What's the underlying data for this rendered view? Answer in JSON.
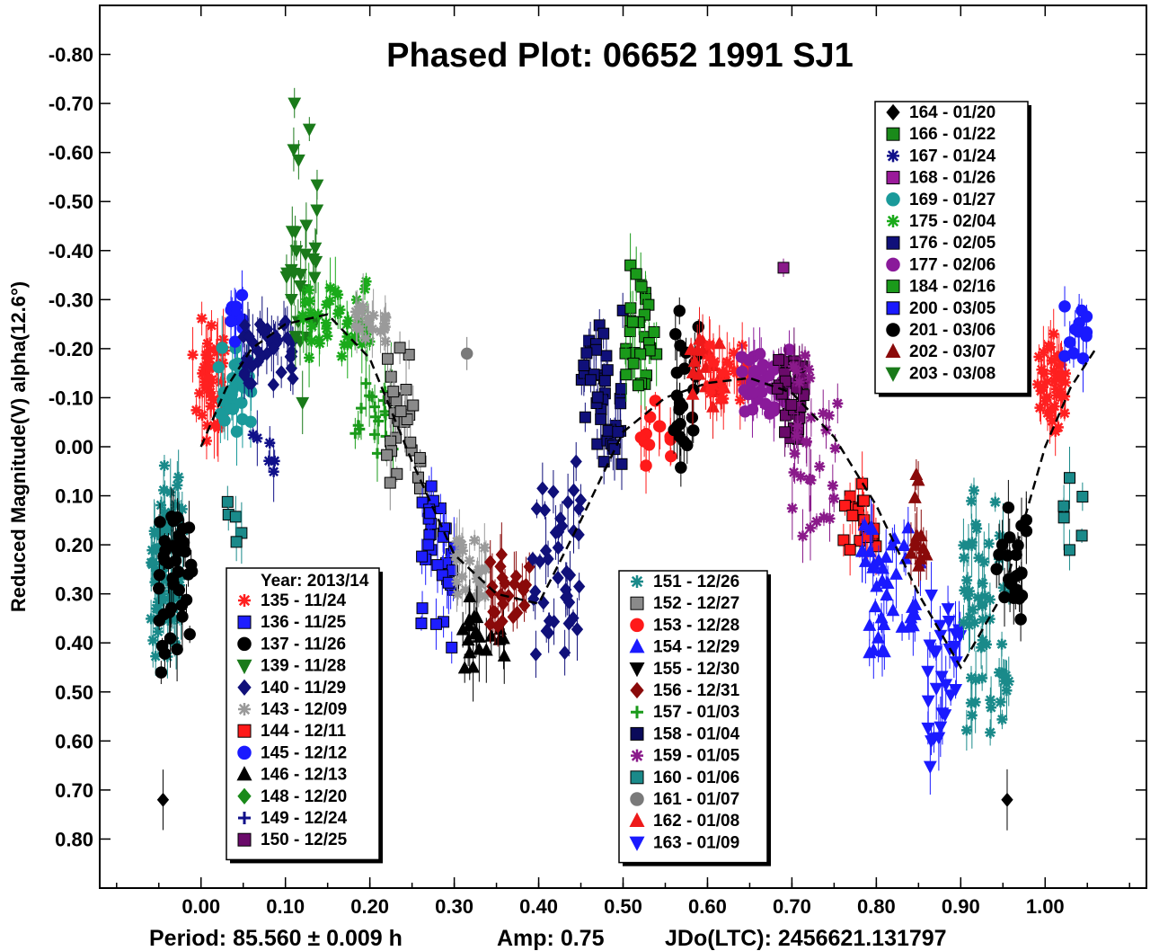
{
  "chart_data": {
    "type": "scatter",
    "title": "Phased Plot: 06652 1991 SJ1",
    "xlabel": "",
    "ylabel": "Reduced Magnitude(V) alpha(12.6°)",
    "xlim": [
      -0.12,
      1.12
    ],
    "ylim": [
      0.9,
      -0.9
    ],
    "y_inverted": true,
    "x_ticks": [
      "0.00",
      "0.10",
      "0.20",
      "0.30",
      "0.40",
      "0.50",
      "0.60",
      "0.70",
      "0.80",
      "0.90",
      "1.00"
    ],
    "x_tick_values": [
      0.0,
      0.1,
      0.2,
      0.3,
      0.4,
      0.5,
      0.6,
      0.7,
      0.8,
      0.9,
      1.0
    ],
    "y_ticks": [
      "-0.80",
      "-0.70",
      "-0.60",
      "-0.50",
      "-0.40",
      "-0.30",
      "-0.20",
      "-0.10",
      "0.00",
      "0.10",
      "0.20",
      "0.30",
      "0.40",
      "0.50",
      "0.60",
      "0.70",
      "0.80"
    ],
    "y_tick_values": [
      -0.8,
      -0.7,
      -0.6,
      -0.5,
      -0.4,
      -0.3,
      -0.2,
      -0.1,
      0.0,
      0.1,
      0.2,
      0.3,
      0.4,
      0.5,
      0.6,
      0.7,
      0.8
    ],
    "footer": {
      "period": "Period: 85.560 ± 0.009 h",
      "amp": "Amp: 0.75",
      "jdo": "JDo(LTC): 2456621.131797"
    },
    "legend_left_header": "Year: 2013/14",
    "fit_curve": {
      "x": [
        0.0,
        0.03,
        0.06,
        0.1,
        0.15,
        0.2,
        0.25,
        0.3,
        0.35,
        0.4,
        0.45,
        0.5,
        0.55,
        0.6,
        0.65,
        0.7,
        0.75,
        0.8,
        0.85,
        0.9,
        0.95,
        1.0,
        1.03,
        1.06
      ],
      "y": [
        0.0,
        -0.12,
        -0.2,
        -0.25,
        -0.27,
        -0.18,
        0.03,
        0.22,
        0.3,
        0.32,
        0.15,
        -0.03,
        -0.1,
        -0.13,
        -0.14,
        -0.11,
        -0.02,
        0.12,
        0.3,
        0.45,
        0.3,
        0.0,
        -0.12,
        -0.2
      ]
    },
    "legend_left": [
      {
        "label": "135 - 11/24",
        "marker": "asterisk",
        "color": "#ff2020"
      },
      {
        "label": "136 - 11/25",
        "marker": "square",
        "color": "#1e1eff"
      },
      {
        "label": "137 - 11/26",
        "marker": "circle",
        "color": "#000000"
      },
      {
        "label": "139 - 11/28",
        "marker": "triangle-down",
        "color": "#1a7a1a"
      },
      {
        "label": "140 - 11/29",
        "marker": "diamond",
        "color": "#10107a"
      },
      {
        "label": "143 - 12/09",
        "marker": "asterisk",
        "color": "#9a9a9a"
      },
      {
        "label": "144 - 12/11",
        "marker": "square",
        "color": "#ff1a1a"
      },
      {
        "label": "145 - 12/12",
        "marker": "circle",
        "color": "#1a1aff"
      },
      {
        "label": "146 - 12/13",
        "marker": "triangle-up",
        "color": "#000000"
      },
      {
        "label": "148 - 12/20",
        "marker": "diamond",
        "color": "#1a8a1a"
      },
      {
        "label": "149 - 12/24",
        "marker": "plus",
        "color": "#10108a"
      },
      {
        "label": "150 - 12/25",
        "marker": "square",
        "color": "#6a0a6a"
      }
    ],
    "legend_mid": [
      {
        "label": "151 - 12/26",
        "marker": "asterisk",
        "color": "#1a8a8a"
      },
      {
        "label": "152 - 12/27",
        "marker": "square",
        "color": "#8a8a8a"
      },
      {
        "label": "153 - 12/28",
        "marker": "circle",
        "color": "#ff1a1a"
      },
      {
        "label": "154 - 12/29",
        "marker": "triangle-up",
        "color": "#1a1aff"
      },
      {
        "label": "155 - 12/30",
        "marker": "triangle-down",
        "color": "#000000"
      },
      {
        "label": "156 - 12/31",
        "marker": "diamond",
        "color": "#8a0a0a"
      },
      {
        "label": "157 - 01/03",
        "marker": "plus",
        "color": "#1a9a1a"
      },
      {
        "label": "158 - 01/04",
        "marker": "square",
        "color": "#0a0a5a"
      },
      {
        "label": "159 - 01/05",
        "marker": "asterisk",
        "color": "#8a1a8a"
      },
      {
        "label": "160 - 01/06",
        "marker": "square",
        "color": "#1a8a8a"
      },
      {
        "label": "161 - 01/07",
        "marker": "circle",
        "color": "#7a7a7a"
      },
      {
        "label": "162 - 01/08",
        "marker": "triangle-up",
        "color": "#ee1a1a"
      },
      {
        "label": "163 - 01/09",
        "marker": "triangle-down",
        "color": "#1a1aff"
      }
    ],
    "legend_right": [
      {
        "label": "164 - 01/20",
        "marker": "diamond",
        "color": "#000000"
      },
      {
        "label": "166 - 01/22",
        "marker": "square",
        "color": "#1a8a1a"
      },
      {
        "label": "167 - 01/24",
        "marker": "asterisk",
        "color": "#10108a"
      },
      {
        "label": "168 - 01/26",
        "marker": "square",
        "color": "#9a1a9a"
      },
      {
        "label": "169 - 01/27",
        "marker": "circle",
        "color": "#1a9a9a"
      },
      {
        "label": "175 - 02/04",
        "marker": "asterisk",
        "color": "#1aaa1a"
      },
      {
        "label": "176 - 02/05",
        "marker": "square",
        "color": "#10107a"
      },
      {
        "label": "177 - 02/06",
        "marker": "circle",
        "color": "#8a1a9a"
      },
      {
        "label": "184 - 02/16",
        "marker": "square",
        "color": "#1a9a1a"
      },
      {
        "label": "200 - 03/05",
        "marker": "square",
        "color": "#1a1aff"
      },
      {
        "label": "201 - 03/06",
        "marker": "circle",
        "color": "#000000"
      },
      {
        "label": "202 - 03/07",
        "marker": "triangle-up",
        "color": "#8a0a0a"
      },
      {
        "label": "203 - 03/08",
        "marker": "triangle-down",
        "color": "#1a7a1a"
      }
    ],
    "clusters": [
      {
        "marker": "asterisk",
        "color": "#1a8a8a",
        "x": [
          -0.06,
          -0.02
        ],
        "y": [
          -0.0,
          0.5
        ],
        "n": 70
      },
      {
        "marker": "circle",
        "color": "#000000",
        "x": [
          -0.05,
          -0.01
        ],
        "y": [
          0.05,
          0.5
        ],
        "n": 40
      },
      {
        "marker": "diamond",
        "color": "#000000",
        "x": [
          -0.05,
          -0.04
        ],
        "y": [
          0.72,
          0.72
        ],
        "n": 1
      },
      {
        "marker": "asterisk",
        "color": "#ff2020",
        "x": [
          -0.01,
          0.03
        ],
        "y": [
          -0.28,
          0.0
        ],
        "n": 45
      },
      {
        "marker": "circle",
        "color": "#1a9a9a",
        "x": [
          0.02,
          0.06
        ],
        "y": [
          -0.25,
          0.0
        ],
        "n": 30
      },
      {
        "marker": "square",
        "color": "#1a8a8a",
        "x": [
          0.03,
          0.05
        ],
        "y": [
          0.1,
          0.22
        ],
        "n": 5
      },
      {
        "marker": "circle",
        "color": "#1a1aff",
        "x": [
          0.03,
          0.06
        ],
        "y": [
          -0.33,
          -0.2
        ],
        "n": 10
      },
      {
        "marker": "diamond",
        "color": "#10107a",
        "x": [
          0.05,
          0.11
        ],
        "y": [
          -0.3,
          -0.1
        ],
        "n": 40
      },
      {
        "marker": "asterisk",
        "color": "#10108a",
        "x": [
          0.06,
          0.1
        ],
        "y": [
          -0.05,
          0.07
        ],
        "n": 6
      },
      {
        "marker": "triangle-down",
        "color": "#1a7a1a",
        "x": [
          0.1,
          0.14
        ],
        "y": [
          -0.76,
          0.0
        ],
        "n": 30
      },
      {
        "marker": "asterisk",
        "color": "#1aaa1a",
        "x": [
          0.12,
          0.2
        ],
        "y": [
          -0.38,
          -0.15
        ],
        "n": 40
      },
      {
        "marker": "asterisk",
        "color": "#9a9a9a",
        "x": [
          0.18,
          0.22
        ],
        "y": [
          -0.3,
          -0.2
        ],
        "n": 20
      },
      {
        "marker": "plus",
        "color": "#1a9a1a",
        "x": [
          0.18,
          0.23
        ],
        "y": [
          -0.2,
          0.05
        ],
        "n": 20
      },
      {
        "marker": "square",
        "color": "#8a8a8a",
        "x": [
          0.22,
          0.26
        ],
        "y": [
          -0.25,
          0.15
        ],
        "n": 30
      },
      {
        "marker": "square",
        "color": "#1e1eff",
        "x": [
          0.26,
          0.3
        ],
        "y": [
          0.0,
          0.45
        ],
        "n": 35
      },
      {
        "marker": "asterisk",
        "color": "#9a9a9a",
        "x": [
          0.3,
          0.34
        ],
        "y": [
          0.15,
          0.35
        ],
        "n": 25
      },
      {
        "marker": "triangle-up",
        "color": "#000000",
        "x": [
          0.31,
          0.36
        ],
        "y": [
          0.3,
          0.48
        ],
        "n": 20
      },
      {
        "marker": "diamond",
        "color": "#8a0a0a",
        "x": [
          0.34,
          0.39
        ],
        "y": [
          0.2,
          0.4
        ],
        "n": 25
      },
      {
        "marker": "diamond",
        "color": "#10107a",
        "x": [
          0.39,
          0.45
        ],
        "y": [
          0.0,
          0.5
        ],
        "n": 40
      },
      {
        "marker": "square",
        "color": "#10107a",
        "x": [
          0.45,
          0.5
        ],
        "y": [
          -0.32,
          0.1
        ],
        "n": 40
      },
      {
        "marker": "square",
        "color": "#1a9a1a",
        "x": [
          0.5,
          0.54
        ],
        "y": [
          -0.42,
          -0.05
        ],
        "n": 30
      },
      {
        "marker": "circle",
        "color": "#ff1a1a",
        "x": [
          0.52,
          0.56
        ],
        "y": [
          -0.1,
          0.05
        ],
        "n": 12
      },
      {
        "marker": "circle",
        "color": "#000000",
        "x": [
          0.56,
          0.59
        ],
        "y": [
          -0.3,
          0.1
        ],
        "n": 25
      },
      {
        "marker": "triangle-up",
        "color": "#ee1a1a",
        "x": [
          0.58,
          0.62
        ],
        "y": [
          -0.28,
          -0.05
        ],
        "n": 25
      },
      {
        "marker": "asterisk",
        "color": "#ff2020",
        "x": [
          0.6,
          0.65
        ],
        "y": [
          -0.25,
          -0.05
        ],
        "n": 30
      },
      {
        "marker": "circle",
        "color": "#8a1a9a",
        "x": [
          0.64,
          0.7
        ],
        "y": [
          -0.22,
          -0.05
        ],
        "n": 35
      },
      {
        "marker": "square",
        "color": "#6a0a6a",
        "x": [
          0.68,
          0.72
        ],
        "y": [
          -0.26,
          0.05
        ],
        "n": 30
      },
      {
        "marker": "asterisk",
        "color": "#8a1a8a",
        "x": [
          0.7,
          0.76
        ],
        "y": [
          -0.25,
          0.3
        ],
        "n": 30
      },
      {
        "marker": "square",
        "color": "#ff1a1a",
        "x": [
          0.76,
          0.8
        ],
        "y": [
          0.05,
          0.25
        ],
        "n": 20
      },
      {
        "marker": "triangle-up",
        "color": "#1a1aff",
        "x": [
          0.78,
          0.86
        ],
        "y": [
          0.1,
          0.5
        ],
        "n": 40
      },
      {
        "marker": "triangle-up",
        "color": "#8a0a0a",
        "x": [
          0.84,
          0.86
        ],
        "y": [
          0.0,
          0.35
        ],
        "n": 12
      },
      {
        "marker": "triangle-down",
        "color": "#1a1aff",
        "x": [
          0.86,
          0.9
        ],
        "y": [
          0.25,
          0.68
        ],
        "n": 30
      },
      {
        "marker": "asterisk",
        "color": "#1a8a8a",
        "x": [
          0.9,
          0.96
        ],
        "y": [
          0.0,
          0.7
        ],
        "n": 60
      },
      {
        "marker": "circle",
        "color": "#000000",
        "x": [
          0.94,
          0.98
        ],
        "y": [
          0.1,
          0.4
        ],
        "n": 25
      },
      {
        "marker": "asterisk",
        "color": "#ff2020",
        "x": [
          0.99,
          1.03
        ],
        "y": [
          -0.28,
          0.0
        ],
        "n": 40
      },
      {
        "marker": "circle",
        "color": "#1a1aff",
        "x": [
          1.02,
          1.05
        ],
        "y": [
          -0.33,
          -0.15
        ],
        "n": 12
      },
      {
        "marker": "square",
        "color": "#1a8a8a",
        "x": [
          1.02,
          1.05
        ],
        "y": [
          0.05,
          0.22
        ],
        "n": 6
      },
      {
        "marker": "diamond",
        "color": "#000000",
        "x": [
          0.95,
          0.96
        ],
        "y": [
          0.72,
          0.72
        ],
        "n": 1
      },
      {
        "marker": "square",
        "color": "#8a1a8a",
        "x": [
          0.69,
          0.69
        ],
        "y": [
          -0.365,
          -0.365
        ],
        "n": 1
      },
      {
        "marker": "circle",
        "color": "#7a7a7a",
        "x": [
          0.315,
          0.315
        ],
        "y": [
          -0.19,
          -0.19
        ],
        "n": 1
      }
    ]
  }
}
